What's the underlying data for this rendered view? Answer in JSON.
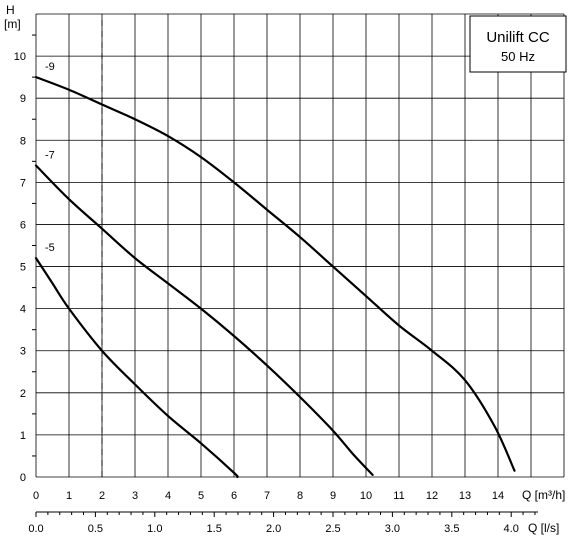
{
  "chart_data": {
    "type": "line",
    "title": "Unilift CC",
    "subtitle": "50 Hz",
    "ylabel": "H",
    "yunit": "[m]",
    "xlabel": "Q [m³/h]",
    "x2label": "Q [l/s]",
    "xlim": [
      0,
      16
    ],
    "ylim": [
      0,
      11
    ],
    "x_ticks": [
      "0",
      "1",
      "2",
      "3",
      "4",
      "5",
      "6",
      "7",
      "8",
      "9",
      "10",
      "11",
      "12",
      "13",
      "14"
    ],
    "y_ticks": [
      "0",
      "1",
      "2",
      "3",
      "4",
      "5",
      "6",
      "7",
      "8",
      "9",
      "10"
    ],
    "x2_ticks": [
      {
        "label": "0.0",
        "x": 0
      },
      {
        "label": "0.5",
        "x": 1.8
      },
      {
        "label": "1.0",
        "x": 3.6
      },
      {
        "label": "1.5",
        "x": 5.4
      },
      {
        "label": "2.0",
        "x": 7.2
      },
      {
        "label": "2.5",
        "x": 9.0
      },
      {
        "label": "3.0",
        "x": 10.8
      },
      {
        "label": "3.5",
        "x": 12.6
      },
      {
        "label": "4.0",
        "x": 14.4
      }
    ],
    "grid": true,
    "reference_line_x": 2,
    "series": [
      {
        "name": "-9",
        "x": [
          0,
          1,
          2,
          3,
          4,
          5,
          6,
          7,
          8,
          9,
          10,
          11,
          12,
          13,
          13.9,
          14.5
        ],
        "y": [
          9.5,
          9.2,
          8.85,
          8.5,
          8.1,
          7.6,
          7.0,
          6.35,
          5.7,
          5.0,
          4.3,
          3.6,
          3.0,
          2.3,
          1.2,
          0.15
        ]
      },
      {
        "name": "-7",
        "x": [
          0,
          1,
          2,
          3,
          4,
          5,
          6,
          7,
          8,
          9,
          9.6,
          10.2
        ],
        "y": [
          7.4,
          6.6,
          5.9,
          5.2,
          4.6,
          4.0,
          3.35,
          2.65,
          1.9,
          1.1,
          0.55,
          0.05
        ]
      },
      {
        "name": "-5",
        "x": [
          0,
          0.5,
          1,
          2,
          3,
          4,
          5,
          6,
          6.1
        ],
        "y": [
          5.2,
          4.6,
          4.0,
          3.0,
          2.2,
          1.45,
          0.8,
          0.1,
          0.0
        ]
      }
    ]
  }
}
